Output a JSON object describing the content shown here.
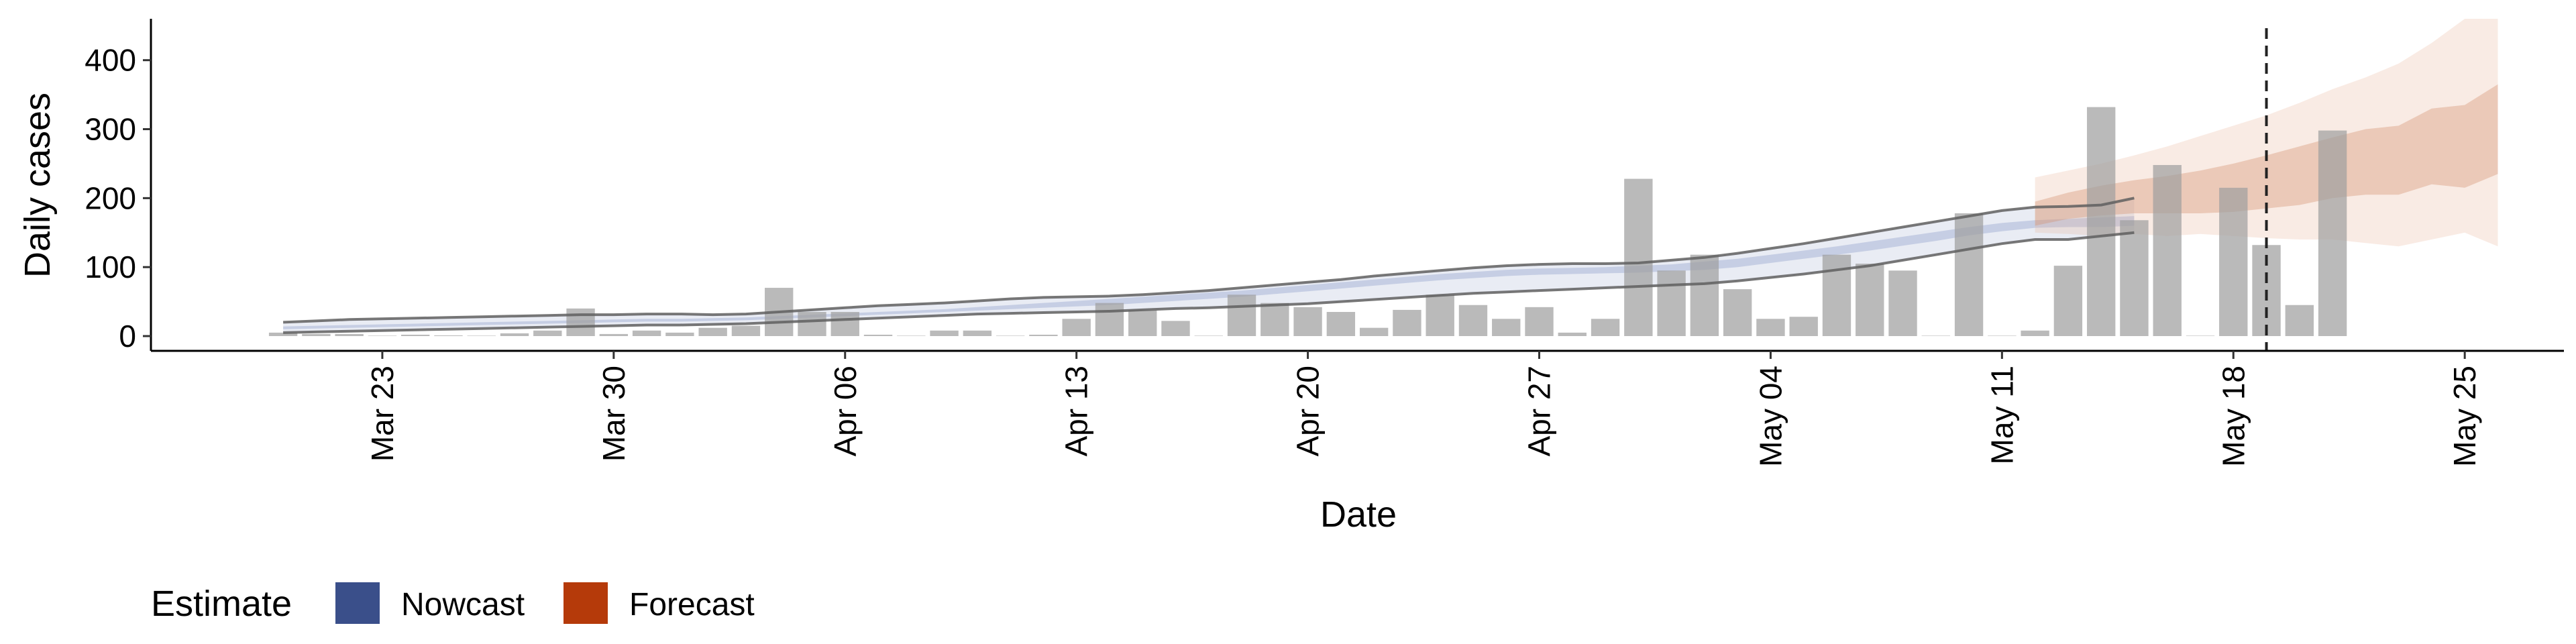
{
  "chart_data": {
    "type": "bar",
    "xlabel": "Date",
    "ylabel": "Daily cases",
    "ylim": [
      0,
      460
    ],
    "y_ticks": [
      0,
      100,
      200,
      300,
      400
    ],
    "x_tick_labels": [
      "Mar 23",
      "Mar 30",
      "Apr 06",
      "Apr 13",
      "Apr 20",
      "Apr 27",
      "May 04",
      "May 11",
      "May 18",
      "May 25"
    ],
    "x_tick_dates": [
      "2020-03-23",
      "2020-03-30",
      "2020-04-06",
      "2020-04-13",
      "2020-04-20",
      "2020-04-27",
      "2020-05-04",
      "2020-05-11",
      "2020-05-18",
      "2020-05-25"
    ],
    "x_range": [
      "2020-03-16",
      "2020-05-28"
    ],
    "grid": false,
    "forecast_start": "2020-05-19",
    "observed": {
      "start_date": "2020-03-20",
      "values": [
        5,
        3,
        3,
        0,
        2,
        1,
        0,
        4,
        8,
        40,
        3,
        8,
        5,
        12,
        15,
        70,
        35,
        35,
        2,
        0,
        8,
        8,
        0,
        2,
        25,
        48,
        38,
        22,
        0,
        60,
        48,
        42,
        35,
        12,
        38,
        60,
        45,
        25,
        42,
        5,
        25,
        228,
        95,
        118,
        68,
        25,
        28,
        118,
        105,
        95,
        0,
        178,
        0,
        8,
        102,
        332,
        168,
        248,
        0,
        215,
        132,
        45,
        298
      ]
    },
    "series": [
      {
        "name": "Nowcast",
        "color": "#3a4f8a",
        "start_date": "2020-03-20",
        "outer_lower": [
          5,
          6,
          7,
          8,
          9,
          10,
          11,
          12,
          13,
          14,
          15,
          16,
          16,
          17,
          18,
          20,
          22,
          24,
          26,
          28,
          30,
          32,
          33,
          34,
          35,
          36,
          38,
          40,
          41,
          43,
          45,
          47,
          50,
          53,
          56,
          59,
          62,
          64,
          66,
          68,
          70,
          72,
          74,
          76,
          80,
          85,
          90,
          96,
          102,
          110,
          118,
          126,
          134,
          140,
          140,
          145,
          150
        ],
        "inner_lower": [
          10,
          11,
          12,
          13,
          14,
          15,
          16,
          17,
          18,
          19,
          20,
          21,
          21,
          22,
          23,
          25,
          27,
          29,
          31,
          33,
          35,
          37,
          39,
          41,
          43,
          45,
          48,
          51,
          54,
          57,
          61,
          65,
          69,
          73,
          77,
          81,
          84,
          87,
          89,
          90,
          91,
          92,
          94,
          96,
          100,
          106,
          112,
          118,
          124,
          131,
          138,
          146,
          152,
          157,
          158,
          158,
          160
        ],
        "inner_upper": [
          14,
          15,
          16,
          17,
          18,
          19,
          20,
          21,
          22,
          23,
          24,
          25,
          25,
          26,
          27,
          29,
          31,
          33,
          35,
          37,
          39,
          42,
          45,
          48,
          51,
          54,
          57,
          60,
          63,
          66,
          70,
          74,
          78,
          82,
          86,
          90,
          93,
          96,
          98,
          99,
          100,
          102,
          104,
          108,
          112,
          118,
          124,
          130,
          137,
          144,
          151,
          158,
          164,
          168,
          170,
          172,
          174
        ],
        "outer_upper": [
          20,
          22,
          24,
          25,
          26,
          27,
          28,
          29,
          30,
          31,
          31,
          32,
          32,
          31,
          32,
          35,
          38,
          41,
          44,
          46,
          48,
          51,
          54,
          56,
          57,
          58,
          60,
          63,
          66,
          70,
          74,
          78,
          82,
          87,
          91,
          95,
          99,
          102,
          104,
          105,
          105,
          106,
          110,
          114,
          120,
          127,
          134,
          142,
          150,
          158,
          166,
          174,
          182,
          187,
          188,
          190,
          200
        ]
      },
      {
        "name": "Forecast",
        "color": "#b53a0a",
        "start_date": "2020-05-12",
        "outer_lower": [
          150,
          148,
          145,
          148,
          145,
          148,
          145,
          142,
          140,
          140,
          135,
          130,
          140,
          150,
          130
        ],
        "inner_lower": [
          160,
          170,
          175,
          178,
          178,
          178,
          180,
          185,
          190,
          200,
          205,
          205,
          220,
          215,
          235
        ],
        "inner_upper": [
          195,
          208,
          218,
          226,
          232,
          240,
          250,
          262,
          275,
          288,
          300,
          305,
          330,
          335,
          365
        ],
        "outer_upper": [
          230,
          240,
          250,
          262,
          275,
          290,
          305,
          320,
          338,
          358,
          375,
          395,
          425,
          460,
          460
        ]
      }
    ],
    "legend": {
      "title": "Estimate",
      "position": "bottom-left",
      "entries": [
        {
          "label": "Nowcast",
          "color": "#3a4f8a"
        },
        {
          "label": "Forecast",
          "color": "#b53a0a"
        }
      ]
    }
  }
}
